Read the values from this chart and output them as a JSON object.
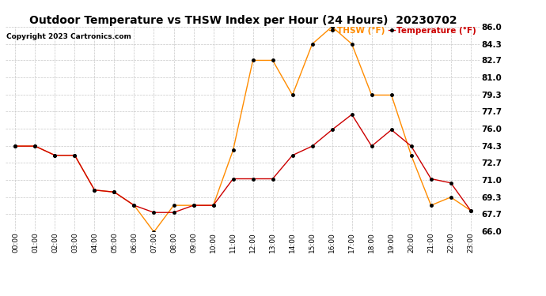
{
  "title": "Outdoor Temperature vs THSW Index per Hour (24 Hours)  20230702",
  "copyright": "Copyright 2023 Cartronics.com",
  "hours": [
    "00:00",
    "01:00",
    "02:00",
    "03:00",
    "04:00",
    "05:00",
    "06:00",
    "07:00",
    "08:00",
    "09:00",
    "10:00",
    "11:00",
    "12:00",
    "13:00",
    "14:00",
    "15:00",
    "16:00",
    "17:00",
    "18:00",
    "19:00",
    "20:00",
    "21:00",
    "22:00",
    "23:00"
  ],
  "temperature": [
    74.3,
    74.3,
    73.4,
    73.4,
    70.0,
    69.8,
    68.5,
    67.8,
    67.8,
    68.5,
    68.5,
    71.1,
    71.1,
    71.1,
    73.4,
    74.3,
    75.9,
    77.4,
    74.3,
    75.9,
    74.3,
    71.1,
    70.7,
    68.0
  ],
  "thsw": [
    74.3,
    74.3,
    73.4,
    73.4,
    70.0,
    69.8,
    68.5,
    65.9,
    68.5,
    68.5,
    68.5,
    73.9,
    82.7,
    82.7,
    79.3,
    84.3,
    86.0,
    84.3,
    79.3,
    79.3,
    73.4,
    68.5,
    69.3,
    68.0
  ],
  "temp_color": "#cc0000",
  "thsw_color": "#ff8c00",
  "marker_color": "#000000",
  "background_color": "#ffffff",
  "grid_color": "#c8c8c8",
  "ylim": [
    66.0,
    86.0
  ],
  "yticks": [
    66.0,
    67.7,
    69.3,
    71.0,
    72.7,
    74.3,
    76.0,
    77.7,
    79.3,
    81.0,
    82.7,
    84.3,
    86.0
  ],
  "legend_thsw": "THSW (°F)",
  "legend_temp": "Temperature (°F)",
  "title_fontsize": 10,
  "copyright_fontsize": 6.5,
  "legend_fontsize": 7.5,
  "tick_fontsize": 6.5,
  "ytick_fontsize": 7.5
}
